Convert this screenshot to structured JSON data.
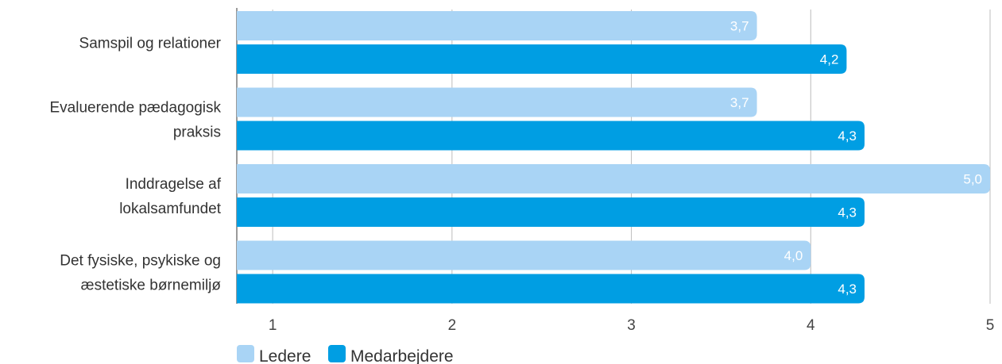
{
  "chart_data": {
    "type": "bar",
    "orientation": "horizontal",
    "categories": [
      [
        "Samspil og relationer"
      ],
      [
        "Evaluerende pædagogisk",
        "praksis"
      ],
      [
        "Inddragelse af",
        "lokalsamfundet"
      ],
      [
        "Det fysiske, psykiske og",
        "æstetiske børnemiljø"
      ]
    ],
    "series": [
      {
        "name": "Ledere",
        "color": "#a9d4f5",
        "values": [
          3.7,
          3.7,
          5.0,
          4.0
        ],
        "labels": [
          "3,7",
          "3,7",
          "5,0",
          "4,0"
        ]
      },
      {
        "name": "Medarbejdere",
        "color": "#009ee3",
        "values": [
          4.2,
          4.3,
          4.3,
          4.3
        ],
        "labels": [
          "4,2",
          "4,3",
          "4,3",
          "4,3"
        ]
      }
    ],
    "xlim": [
      0.8,
      5.0
    ],
    "xticks": [
      "1",
      "2",
      "3",
      "4",
      "5"
    ],
    "grid": true,
    "legend": "bottom-left"
  }
}
